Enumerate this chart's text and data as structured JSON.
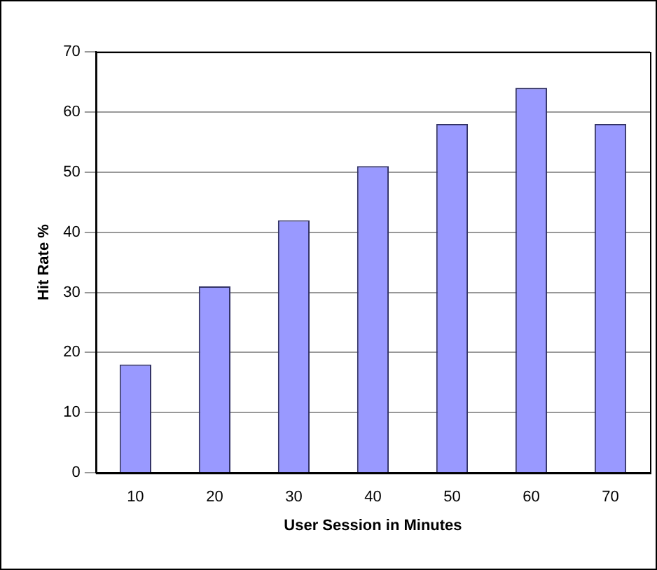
{
  "chart_data": {
    "type": "bar",
    "xlabel": "User Session in Minutes",
    "ylabel": "Hit Rate %",
    "categories": [
      "10",
      "20",
      "30",
      "40",
      "50",
      "60",
      "70"
    ],
    "values": [
      18,
      31,
      42,
      51,
      58,
      64,
      58
    ],
    "color": "#9999ff",
    "ylim": [
      0,
      70
    ],
    "yticks": [
      0,
      10,
      20,
      30,
      40,
      50,
      60,
      70
    ],
    "grid": "y",
    "legend": false
  }
}
